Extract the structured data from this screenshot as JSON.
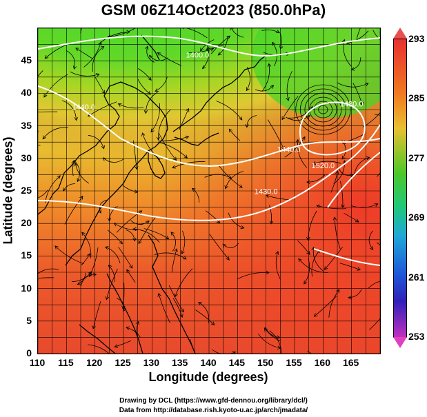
{
  "title": "GSM 06Z14Oct2023 (850.0hPa)",
  "axes": {
    "xlabel": "Longitude (degrees)",
    "ylabel": "Latitude  (degrees)",
    "xticks": [
      "110",
      "115",
      "120",
      "125",
      "130",
      "135",
      "140",
      "145",
      "150",
      "155",
      "160",
      "165"
    ],
    "yticks": [
      "0",
      "5",
      "10",
      "15",
      "20",
      "25",
      "30",
      "35",
      "40",
      "45"
    ],
    "xrange": [
      110,
      170
    ],
    "yrange": [
      0,
      50
    ]
  },
  "colorbar": {
    "ticks": [
      "293",
      "285",
      "277",
      "269",
      "261",
      "253"
    ],
    "range": [
      253,
      293
    ],
    "colors": [
      "#e83030",
      "#f07820",
      "#e8c030",
      "#4cc828",
      "#20c878",
      "#1ea8d8",
      "#2050d8",
      "#3020b8",
      "#c030c0"
    ]
  },
  "contour_labels": [
    {
      "text": "1400.0",
      "lon": 138,
      "lat": 45.5
    },
    {
      "text": "1440.0",
      "lon": 118,
      "lat": 37.5
    },
    {
      "text": "1430.0",
      "lon": 150,
      "lat": 24.5
    },
    {
      "text": "1440.0",
      "lon": 154,
      "lat": 31.0
    },
    {
      "text": "1520.0",
      "lon": 160,
      "lat": 28.5
    },
    {
      "text": "1480.0",
      "lon": 165,
      "lat": 38.0
    }
  ],
  "credits": [
    "Drawing by DCL (https://www.gfd-dennou.org/library/dcl/)",
    "Data from http://database.rish.kyoto-u.ac.jp/arch/jmadata/"
  ]
}
